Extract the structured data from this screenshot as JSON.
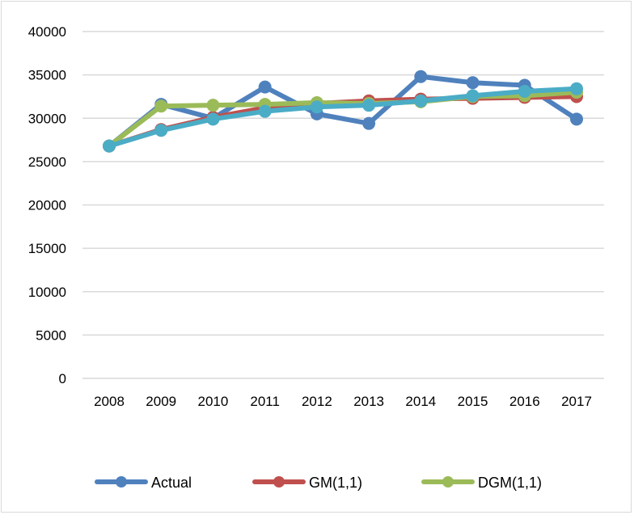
{
  "chart_data": {
    "type": "line",
    "title": "",
    "xlabel": "",
    "ylabel": "",
    "categories": [
      "2008",
      "2009",
      "2010",
      "2011",
      "2012",
      "2013",
      "2014",
      "2015",
      "2016",
      "2017"
    ],
    "ylim": [
      0,
      40000
    ],
    "yticks": [
      0,
      5000,
      10000,
      15000,
      20000,
      25000,
      30000,
      35000,
      40000
    ],
    "ytick_labels": [
      "0",
      "5000",
      "10000",
      "15000",
      "20000",
      "25000",
      "30000",
      "35000",
      "40000"
    ],
    "grid": true,
    "legend_position": "bottom",
    "series": [
      {
        "name": "Actual",
        "color": "#4f81bd",
        "values": [
          26800,
          31600,
          30000,
          33600,
          30500,
          29400,
          34800,
          34100,
          33800,
          29900
        ]
      },
      {
        "name": "GM(1,1)",
        "color": "#c0504d",
        "values": [
          26800,
          28700,
          30100,
          31200,
          31700,
          32000,
          32200,
          32300,
          32400,
          32500
        ]
      },
      {
        "name": "DGM(1,1)",
        "color": "#9bbb59",
        "values": [
          26800,
          31400,
          31500,
          31600,
          31800,
          31700,
          31900,
          32500,
          32600,
          33000
        ]
      },
      {
        "name": "",
        "color": "#4bacc6",
        "values": [
          26800,
          28600,
          29900,
          30800,
          31300,
          31500,
          32000,
          32600,
          33100,
          33400
        ]
      }
    ]
  }
}
